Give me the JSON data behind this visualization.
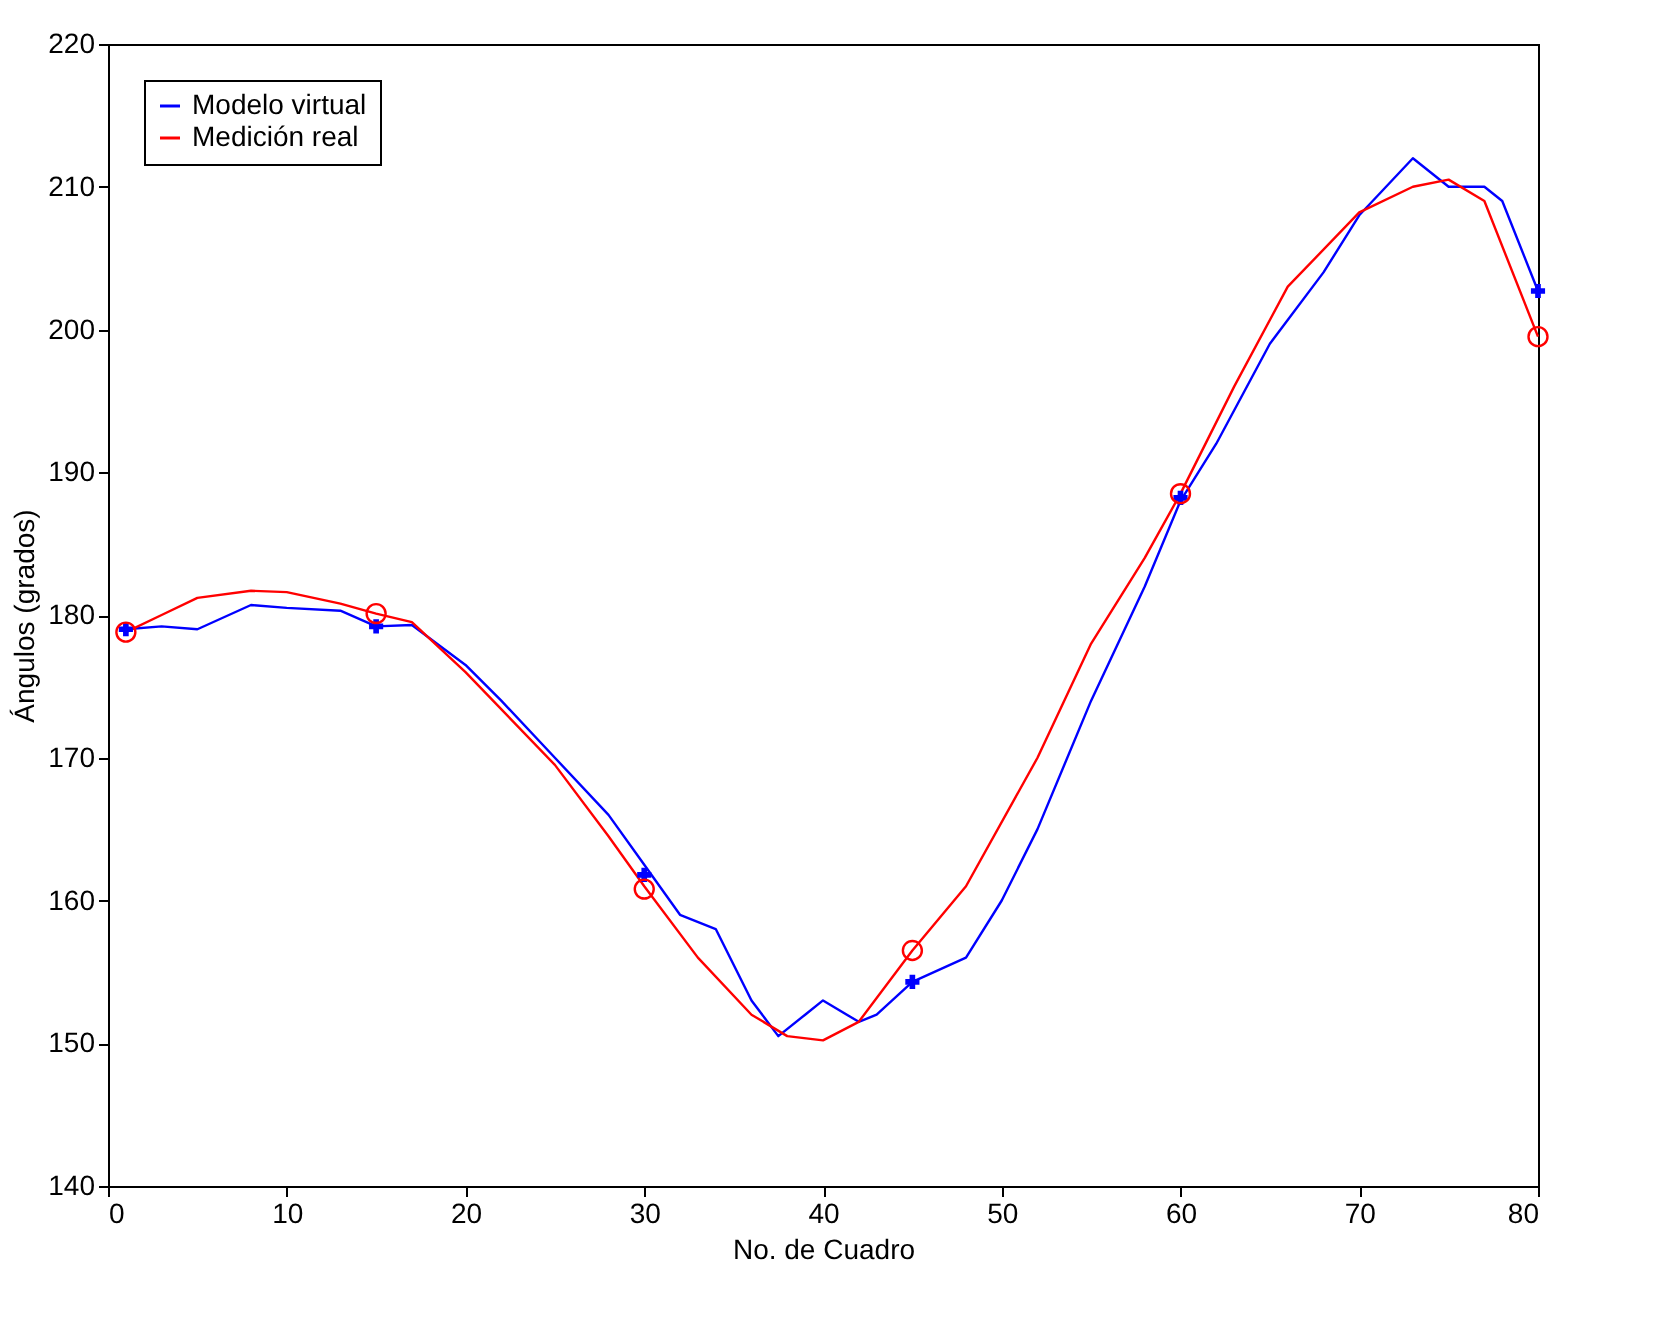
{
  "chart_data": {
    "type": "line",
    "xlabel": "No. de Cuadro",
    "ylabel": "Ángulos (grados)",
    "xlim": [
      0,
      80
    ],
    "xticks": [
      0,
      10,
      20,
      30,
      40,
      50,
      60,
      70,
      80
    ],
    "ylim": [
      140,
      220
    ],
    "yticks": [
      140,
      150,
      160,
      170,
      180,
      190,
      200,
      210,
      220
    ],
    "grid": false,
    "legend": "top left",
    "series": [
      {
        "name": "Modelo virtual",
        "color": "#0000ff",
        "x": [
          1,
          3,
          5,
          8,
          10,
          13,
          15,
          17,
          20,
          22,
          25,
          28,
          30,
          32,
          34,
          36,
          37.5,
          39,
          40,
          42,
          43,
          45,
          48,
          50,
          52,
          55,
          58,
          60,
          62,
          65,
          68,
          70,
          73,
          75,
          77,
          78,
          80
        ],
        "values": [
          179,
          179.2,
          179,
          180.7,
          180.5,
          180.3,
          179.2,
          179.3,
          176.5,
          174,
          170,
          166,
          162.5,
          159,
          158,
          153,
          150.5,
          152,
          153,
          151.5,
          152,
          154.3,
          156,
          160,
          165,
          174,
          182,
          188,
          192,
          199,
          204,
          208,
          212,
          210,
          210,
          209,
          202.7
        ]
      },
      {
        "name": "Medición real",
        "color": "#ff0000",
        "x": [
          1,
          3,
          5,
          8,
          10,
          13,
          15,
          17,
          20,
          25,
          28,
          30,
          33,
          36,
          38,
          40,
          42,
          45,
          48,
          52,
          55,
          58,
          60,
          63,
          66,
          70,
          73,
          75,
          77,
          80
        ],
        "values": [
          178.8,
          180,
          181.2,
          181.7,
          181.6,
          180.8,
          180.1,
          179.5,
          176,
          169.5,
          164.5,
          161,
          156,
          152,
          150.5,
          150.2,
          151.5,
          156.5,
          161,
          170,
          178,
          184,
          188.5,
          196,
          203,
          208.2,
          210,
          210.5,
          209,
          199.5
        ]
      },
      {
        "color": "#0000ff",
        "type": "scatter",
        "marker": "cross",
        "x": [
          1,
          15,
          30,
          45,
          60,
          80
        ],
        "values": [
          179,
          179.2,
          161.8,
          154.3,
          188.2,
          202.7
        ]
      },
      {
        "color": "#ff0000",
        "type": "scatter",
        "marker": "circle",
        "x": [
          1,
          15,
          30,
          45,
          60,
          80
        ],
        "values": [
          178.8,
          180.1,
          160.8,
          156.5,
          188.5,
          199.5
        ]
      }
    ]
  }
}
